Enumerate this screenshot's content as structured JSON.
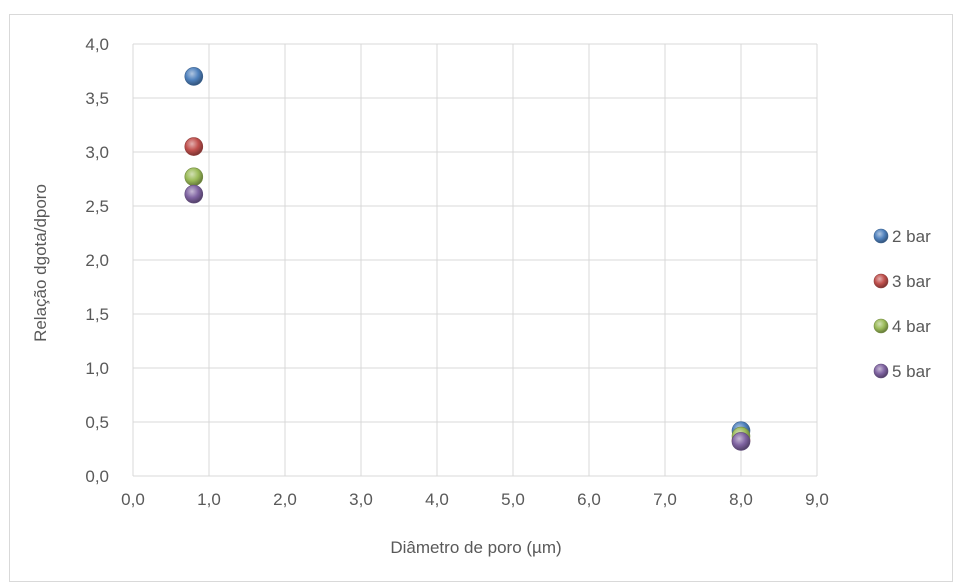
{
  "chart_data": {
    "type": "scatter",
    "title": "",
    "xlabel": "Diâmetro de poro (µm)",
    "ylabel": "Relação dgota/dporo",
    "xlim": [
      0,
      9
    ],
    "ylim": [
      0,
      4
    ],
    "x_ticks": [
      "0,0",
      "1,0",
      "2,0",
      "3,0",
      "4,0",
      "5,0",
      "6,0",
      "7,0",
      "8,0",
      "9,0"
    ],
    "y_ticks": [
      "0,0",
      "0,5",
      "1,0",
      "1,5",
      "2,0",
      "2,5",
      "3,0",
      "3,5",
      "4,0"
    ],
    "grid": true,
    "legend_position": "right",
    "series": [
      {
        "name": "2 bar",
        "color": "#4f81bd",
        "points": [
          {
            "x": 0.8,
            "y": 3.7
          },
          {
            "x": 8.0,
            "y": 0.42
          }
        ]
      },
      {
        "name": "3 bar",
        "color": "#c0504d",
        "points": [
          {
            "x": 0.8,
            "y": 3.05
          },
          {
            "x": 8.0,
            "y": 0.33
          }
        ]
      },
      {
        "name": "4 bar",
        "color": "#9bbb59",
        "points": [
          {
            "x": 0.8,
            "y": 2.77
          },
          {
            "x": 8.0,
            "y": 0.37
          }
        ]
      },
      {
        "name": "5 bar",
        "color": "#8064a2",
        "points": [
          {
            "x": 0.8,
            "y": 2.61
          },
          {
            "x": 8.0,
            "y": 0.32
          }
        ]
      }
    ]
  }
}
